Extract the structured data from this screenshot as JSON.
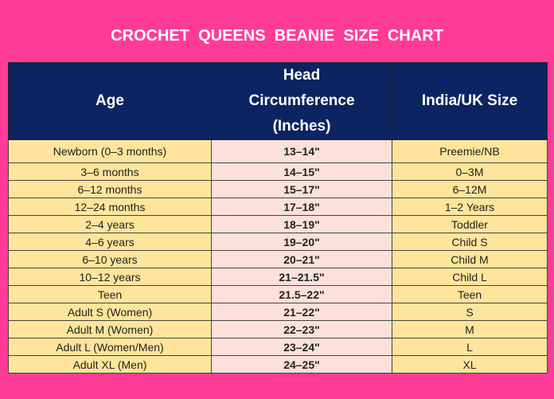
{
  "header": {
    "title": "CROCHET  QUEENS  BEANIE  SIZE  CHART"
  },
  "table": {
    "columns": [
      "Age",
      "Head Circumference (Inches)",
      "India/UK Size"
    ],
    "rows": [
      [
        "Newborn (0–3 months)",
        "13–14\"",
        "Preemie/NB"
      ],
      [
        "3–6 months",
        "14–15\"",
        "0–3M"
      ],
      [
        "6–12 months",
        "15–17\"",
        "6–12M"
      ],
      [
        "12–24 months",
        "17–18\"",
        "1–2 Years"
      ],
      [
        "2–4 years",
        "18–19\"",
        "Toddler"
      ],
      [
        "4–6 years",
        "19–20\"",
        "Child S"
      ],
      [
        "6–10 years",
        "20–21\"",
        "Child M"
      ],
      [
        "10–12 years",
        "21–21.5\"",
        "Child L"
      ],
      [
        "Teen",
        "21.5–22\"",
        "Teen"
      ],
      [
        "Adult S (Women)",
        "21–22\"",
        "S"
      ],
      [
        "Adult M (Women)",
        "22–23\"",
        "M"
      ],
      [
        "Adult L (Women/Men)",
        "23–24\"",
        "L"
      ],
      [
        "Adult XL (Men)",
        "24–25\"",
        "XL"
      ]
    ]
  }
}
